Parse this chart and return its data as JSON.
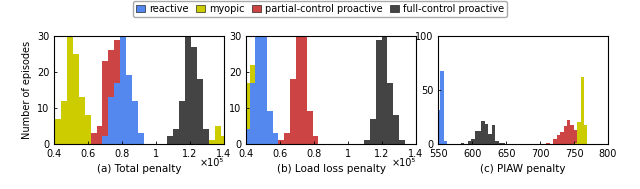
{
  "colors": {
    "reactive": "#5588ee",
    "myopic": "#cccc00",
    "partial": "#cc4444",
    "full": "#444444"
  },
  "subplot_a": {
    "xlabel": "(a) Total penalty",
    "ylabel": "Number of episodes",
    "xlim": [
      40000,
      140000
    ],
    "ylim": [
      0,
      30
    ],
    "xticks": [
      40000,
      60000,
      80000,
      100000,
      120000,
      140000
    ],
    "xticklabels": [
      "0.4",
      "0.6",
      "0.8",
      "1",
      "1.2",
      "1.4"
    ],
    "exp_label": "×10⁵"
  },
  "subplot_b": {
    "xlabel": "(b) Load loss penalty",
    "xlim": [
      40000,
      140000
    ],
    "ylim": [
      0,
      30
    ],
    "xticks": [
      40000,
      60000,
      80000,
      100000,
      120000,
      140000
    ],
    "xticklabels": [
      "0.4",
      "0.6",
      "0.8",
      "1",
      "1.2",
      "1.4"
    ],
    "exp_label": "×10⁵"
  },
  "subplot_c": {
    "xlabel": "(c) PIAW penalty",
    "xlim": [
      550,
      800
    ],
    "ylim": [
      0,
      100
    ],
    "xticks": [
      550,
      600,
      650,
      700,
      750,
      800
    ],
    "xticklabels": [
      "550",
      "600",
      "650",
      "700",
      "750",
      "800"
    ]
  },
  "legend": {
    "reactive": "reactive",
    "myopic": "myopic",
    "partial": "partial-control proactive",
    "full": "full-control proactive"
  }
}
